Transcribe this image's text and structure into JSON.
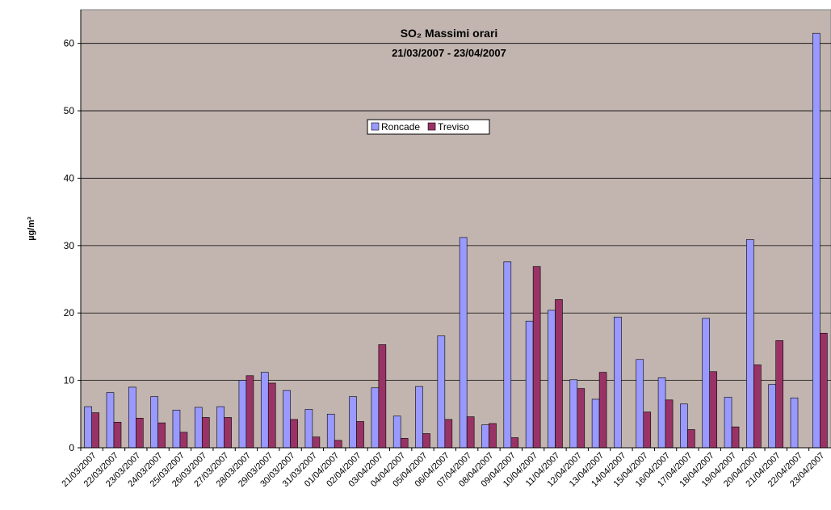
{
  "chart_data": {
    "type": "bar",
    "title": "SO₂ Massimi orari",
    "subtitle": "21/03/2007 - 23/04/2007",
    "y_label": "µg/m³",
    "categories": [
      "21/03/2007",
      "22/03/2007",
      "23/03/2007",
      "24/03/2007",
      "25/03/2007",
      "26/03/2007",
      "27/03/2007",
      "28/03/2007",
      "29/03/2007",
      "30/03/2007",
      "31/03/2007",
      "01/04/2007",
      "02/04/2007",
      "03/04/2007",
      "04/04/2007",
      "05/04/2007",
      "06/04/2007",
      "07/04/2007",
      "08/04/2007",
      "09/04/2007",
      "10/04/2007",
      "11/04/2007",
      "12/04/2007",
      "13/04/2007",
      "14/04/2007",
      "15/04/2007",
      "16/04/2007",
      "17/04/2007",
      "18/04/2007",
      "19/04/2007",
      "20/04/2007",
      "21/04/2007",
      "22/04/2007",
      "23/04/2007"
    ],
    "series": [
      {
        "name": "Roncade",
        "color": "#9999ff",
        "values": [
          6.1,
          8.2,
          9.0,
          7.6,
          5.6,
          6.0,
          6.1,
          10.0,
          11.2,
          8.5,
          5.7,
          5.0,
          7.6,
          8.9,
          4.7,
          9.1,
          16.6,
          31.2,
          3.4,
          27.6,
          18.8,
          20.4,
          10.1,
          7.2,
          19.4,
          13.1,
          10.4,
          6.5,
          19.2,
          7.5,
          30.9,
          9.4,
          7.4,
          61.5
        ]
      },
      {
        "name": "Treviso",
        "color": "#993366",
        "values": [
          5.2,
          3.8,
          4.4,
          3.7,
          2.3,
          4.5,
          4.5,
          10.7,
          9.6,
          4.2,
          1.6,
          1.1,
          3.9,
          15.3,
          1.4,
          2.1,
          4.2,
          4.6,
          3.6,
          1.5,
          26.9,
          22.0,
          8.8,
          11.2,
          null,
          5.3,
          7.1,
          2.7,
          11.3,
          3.1,
          12.3,
          15.9,
          null,
          17.0
        ]
      }
    ],
    "ylim": [
      0,
      65
    ],
    "yticks": [
      0,
      10,
      20,
      30,
      40,
      50,
      60
    ],
    "grid": true,
    "background": "#c2b5b0"
  }
}
